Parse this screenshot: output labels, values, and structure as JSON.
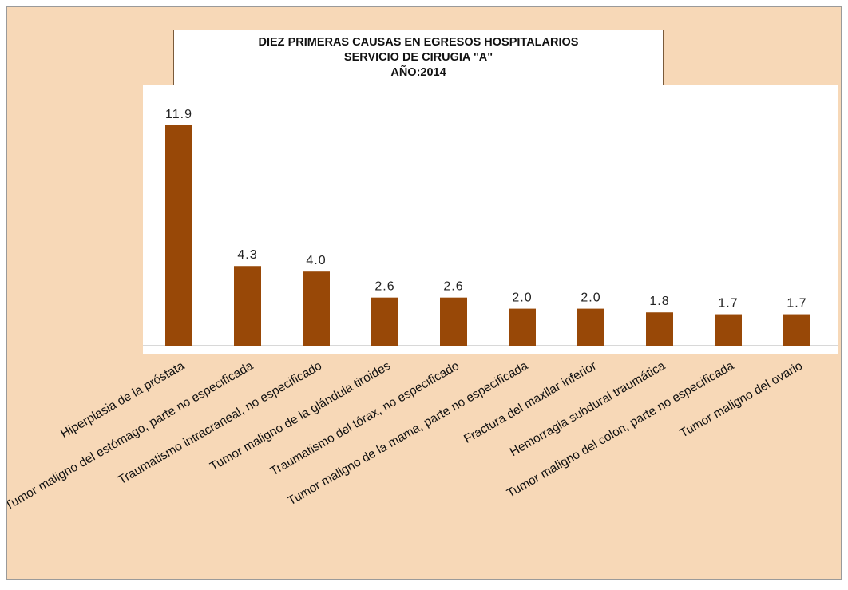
{
  "chart_data": {
    "type": "bar",
    "title_lines": [
      "DIEZ PRIMERAS CAUSAS EN EGRESOS HOSPITALARIOS",
      "SERVICIO DE CIRUGIA \"A\"",
      "AÑO:2014"
    ],
    "categories": [
      "Hiperplasia de la próstata",
      "Tumor maligno del estómago, parte no especificada",
      "Traumatismo intracraneal, no especificado",
      "Tumor maligno de la glándula tiroides",
      "Traumatismo del tórax, no especificado",
      "Tumor maligno de la mama, parte no especificada",
      "Fractura del maxilar inferior",
      "Hemorragia subdural traumática",
      "Tumor maligno del colon, parte no especificada",
      "Tumor maligno del ovario"
    ],
    "values": [
      11.9,
      4.3,
      4.0,
      2.6,
      2.6,
      2.0,
      2.0,
      1.8,
      1.7,
      1.7
    ],
    "value_labels": [
      "11.9",
      "4.3",
      "4.0",
      "2.6",
      "2.6",
      "2.0",
      "2.0",
      "1.8",
      "1.7",
      "1.7"
    ],
    "xlabel": "",
    "ylabel": "",
    "ylim": [
      0,
      14
    ],
    "grid": false,
    "legend": "none",
    "colors": {
      "bar": "#984807",
      "chart_background": "#f7d8b7",
      "plot_background": "#ffffff"
    }
  }
}
